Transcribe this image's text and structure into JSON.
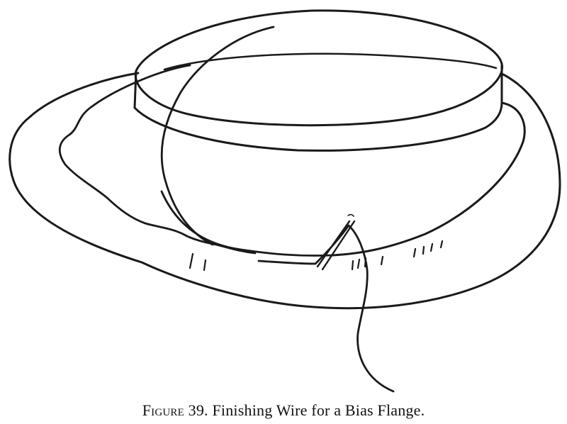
{
  "caption": {
    "label": "Figure 39.",
    "text": "Finishing Wire for a Bias Flange."
  },
  "illustration": {
    "subject": "hat-with-bias-flange-and-wire",
    "ink_color": "#1a1a1a",
    "background_color": "#ffffff"
  }
}
